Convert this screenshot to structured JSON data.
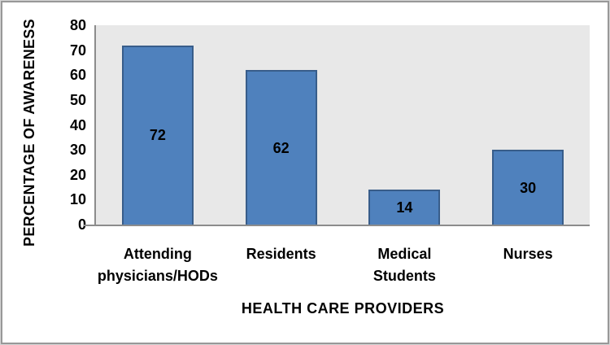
{
  "chart_data": {
    "type": "bar",
    "title": "",
    "categories": [
      "Attending physicians/HODs",
      "Residents",
      "Medical Students",
      "Nurses"
    ],
    "category_lines": [
      [
        "Attending",
        "physicians/HODs"
      ],
      [
        "Residents"
      ],
      [
        "Medical",
        "Students"
      ],
      [
        "Nurses"
      ]
    ],
    "values": [
      72,
      62,
      14,
      30
    ],
    "data_labels": [
      "72",
      "62",
      "14",
      "30"
    ],
    "xlabel": "HEALTH CARE PROVIDERS",
    "ylabel": "PERCENTAGE OF AWARENESS",
    "ylim": [
      0,
      80
    ],
    "yticks": [
      0,
      10,
      20,
      30,
      40,
      50,
      60,
      70,
      80
    ],
    "grid": false,
    "legend_position": "none",
    "colors": {
      "bar_fill": "#4F81BD",
      "bar_border": "#385D8A",
      "plot_background": "#E8E8E8",
      "chart_background": "#FFFFFF",
      "axis_line": "#8C8C8C",
      "text": "#000000"
    }
  }
}
